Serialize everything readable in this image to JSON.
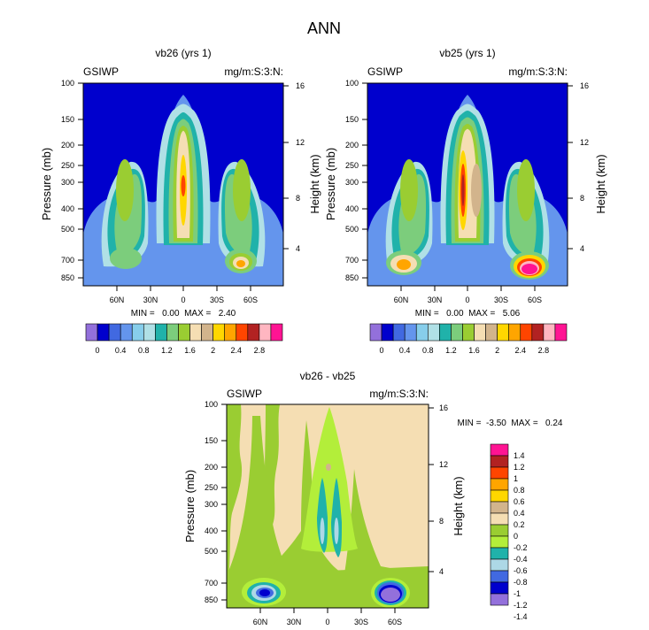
{
  "page_title": "ANN",
  "chart_data": [
    {
      "type": "contour",
      "title": "vb26 (yrs 1)",
      "left_label": "GSIWP",
      "right_label": "mg/m:S:3:N:",
      "ylabel": "Pressure (mb)",
      "y2label": "Height (km)",
      "pressure_ticks": [
        "100",
        "150",
        "200",
        "250",
        "300",
        "400",
        "500",
        "700",
        "850"
      ],
      "height_ticks": [
        "16",
        "12",
        "8",
        "4"
      ],
      "lat_ticks": [
        "60N",
        "30N",
        "0",
        "30S",
        "60S"
      ],
      "stats": "MIN =   0.00  MAX =   2.40",
      "min": 0.0,
      "max": 2.4,
      "peak_level": 1.8
    },
    {
      "type": "contour",
      "title": "vb25 (yrs 1)",
      "left_label": "GSIWP",
      "right_label": "mg/m:S:3:N:",
      "ylabel": "Pressure (mb)",
      "y2label": "Height (km)",
      "pressure_ticks": [
        "100",
        "150",
        "200",
        "250",
        "300",
        "400",
        "500",
        "700",
        "850"
      ],
      "height_ticks": [
        "16",
        "12",
        "8",
        "4"
      ],
      "lat_ticks": [
        "60N",
        "30N",
        "0",
        "30S",
        "60S"
      ],
      "stats": "MIN =   0.00  MAX =   5.06",
      "min": 0.0,
      "max": 5.06,
      "peak_level": 3.0
    },
    {
      "type": "contour",
      "title": "vb26 - vb25",
      "left_label": "GSIWP",
      "right_label": "mg/m:S:3:N:",
      "ylabel": "Pressure (mb)",
      "y2label": "Height (km)",
      "pressure_ticks": [
        "100",
        "150",
        "200",
        "250",
        "300",
        "400",
        "500",
        "700",
        "850"
      ],
      "height_ticks": [
        "16",
        "12",
        "8",
        "4"
      ],
      "lat_ticks": [
        "60N",
        "30N",
        "0",
        "30S",
        "60S"
      ],
      "stats": "MIN =  -3.50  MAX =   0.24",
      "min": -3.5,
      "max": 0.24
    }
  ],
  "colorbar_abs": {
    "labels": [
      "0",
      "0.4",
      "0.8",
      "1.2",
      "1.6",
      "2",
      "2.4",
      "2.8"
    ],
    "colors": [
      "#9370db",
      "#0000cd",
      "#4169e1",
      "#6495ed",
      "#87ceeb",
      "#b0e0e6",
      "#20b2aa",
      "#7ccd7c",
      "#9acd32",
      "#f5deb3",
      "#d2b48c",
      "#ffd700",
      "#ffa500",
      "#ff4500",
      "#b22222",
      "#ffb6c1",
      "#ff1493"
    ]
  },
  "colorbar_diff": {
    "labels": [
      "1.4",
      "1.2",
      "1",
      "0.8",
      "0.6",
      "0.4",
      "0.2",
      "0",
      "-0.2",
      "-0.4",
      "-0.6",
      "-0.8",
      "-1",
      "-1.2",
      "-1.4"
    ],
    "colors": [
      "#ff1493",
      "#b22222",
      "#ff4500",
      "#ffa500",
      "#ffd700",
      "#d2b48c",
      "#f5deb3",
      "#9acd32",
      "#b3ee3a",
      "#20b2aa",
      "#add8e6",
      "#4169e1",
      "#0000cd",
      "#9370db"
    ]
  }
}
